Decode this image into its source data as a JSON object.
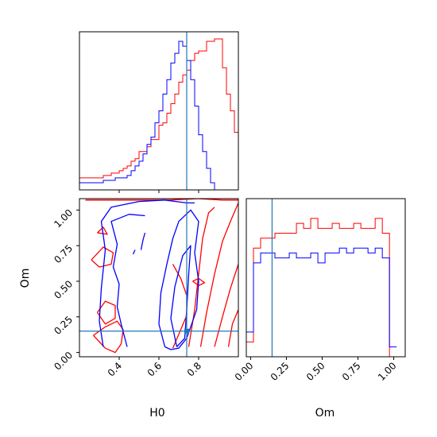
{
  "chart_data": {
    "type": "corner",
    "parameters": [
      "H0",
      "Om"
    ],
    "truth": {
      "H0": 0.74,
      "Om": 0.15
    },
    "colors": {
      "run_a": "#ff0000",
      "run_b": "#0000ff",
      "truth": "#1f77b4"
    },
    "axes": {
      "H0": {
        "label": "H0",
        "range": [
          0.2,
          1.0
        ],
        "ticks": [
          "0.4",
          "0.6",
          "0.8"
        ],
        "tick_values": [
          0.4,
          0.6,
          0.8
        ]
      },
      "Om": {
        "label": "Om",
        "range": [
          -0.03,
          1.08
        ],
        "ticks": [
          "0.00",
          "0.25",
          "0.50",
          "0.75",
          "1.00"
        ],
        "tick_values": [
          0.0,
          0.25,
          0.5,
          0.75,
          1.0
        ]
      }
    },
    "h0_hist_bins": [
      0.2,
      0.22,
      0.24,
      0.26,
      0.28,
      0.3,
      0.32,
      0.34,
      0.36,
      0.38,
      0.4,
      0.42,
      0.44,
      0.46,
      0.48,
      0.5,
      0.52,
      0.54,
      0.56,
      0.58,
      0.6,
      0.62,
      0.64,
      0.66,
      0.68,
      0.7,
      0.72,
      0.74,
      0.76,
      0.78,
      0.8,
      0.82,
      0.84,
      0.86,
      0.88,
      0.9,
      0.92,
      0.94,
      0.96,
      0.98,
      1.0
    ],
    "h0_hist": {
      "red": [
        0.5,
        0.5,
        0.5,
        0.5,
        0.5,
        0.5,
        0.6,
        0.6,
        0.7,
        0.7,
        0.8,
        0.9,
        1.0,
        1.2,
        1.3,
        1.6,
        1.6,
        1.8,
        2.1,
        2.1,
        2.7,
        2.8,
        3.2,
        3.6,
        4.0,
        4.5,
        4.8,
        5.0,
        5.4,
        5.7,
        5.8,
        5.8,
        6.2,
        6.2,
        6.3,
        6.3,
        5.1,
        4.0,
        3.3,
        2.4,
        0
      ],
      "blue": [
        0.3,
        0.3,
        0.3,
        0.3,
        0.3,
        0.3,
        0.4,
        0.4,
        0.4,
        0.5,
        0.5,
        0.5,
        0.6,
        0.8,
        1.0,
        1.2,
        1.5,
        1.9,
        2.2,
        2.8,
        3.3,
        4.0,
        4.6,
        5.3,
        5.7,
        6.2,
        6.0,
        5.4,
        4.6,
        3.5,
        2.3,
        1.6,
        0.9,
        0.3,
        0,
        0,
        0,
        0,
        0,
        0,
        0
      ]
    },
    "om_hist_bins": [
      -0.03,
      0.02,
      0.07,
      0.12,
      0.17,
      0.22,
      0.27,
      0.32,
      0.37,
      0.42,
      0.47,
      0.52,
      0.57,
      0.62,
      0.67,
      0.72,
      0.77,
      0.82,
      0.87,
      0.92,
      0.97,
      1.02
    ],
    "om_hist": {
      "red": [
        0.3,
        2.2,
        2.4,
        2.4,
        2.5,
        2.5,
        2.5,
        2.7,
        2.6,
        2.8,
        2.6,
        2.6,
        2.7,
        2.6,
        2.6,
        2.7,
        2.6,
        2.6,
        2.8,
        2.5,
        0,
        0
      ],
      "blue": [
        0.5,
        1.9,
        2.1,
        2.1,
        2.0,
        2.0,
        2.1,
        2.0,
        2.0,
        2.1,
        1.9,
        2.1,
        2.1,
        2.2,
        2.1,
        2.2,
        2.2,
        2.1,
        2.2,
        2.0,
        0.2,
        0.2
      ]
    },
    "contours_2d": {
      "red": [
        [
          [
            0.23,
            1.07
          ],
          [
            0.36,
            1.07
          ],
          [
            0.5,
            1.07
          ],
          [
            0.65,
            1.07
          ],
          [
            0.8,
            1.08
          ],
          [
            0.92,
            1.07
          ],
          [
            1.0,
            1.07
          ],
          [
            1.0,
            1.08
          ],
          [
            0.23,
            1.08
          ]
        ],
        [
          [
            0.27,
            0.12
          ],
          [
            0.33,
            0.18
          ],
          [
            0.39,
            0.22
          ],
          [
            0.42,
            0.16
          ],
          [
            0.41,
            0.06
          ],
          [
            0.38,
            0.0
          ],
          [
            0.33,
            0.03
          ],
          [
            0.27,
            0.12
          ]
        ],
        [
          [
            0.29,
            0.28
          ],
          [
            0.33,
            0.36
          ],
          [
            0.38,
            0.33
          ],
          [
            0.38,
            0.24
          ],
          [
            0.33,
            0.2
          ],
          [
            0.29,
            0.28
          ]
        ],
        [
          [
            0.26,
            0.65
          ],
          [
            0.32,
            0.74
          ],
          [
            0.37,
            0.7
          ],
          [
            0.36,
            0.62
          ],
          [
            0.3,
            0.6
          ],
          [
            0.26,
            0.65
          ]
        ],
        [
          [
            0.29,
            0.84
          ],
          [
            0.32,
            0.88
          ],
          [
            0.34,
            0.83
          ],
          [
            0.29,
            0.84
          ]
        ],
        [
          [
            0.67,
            0.62
          ],
          [
            0.71,
            0.52
          ],
          [
            0.74,
            0.4
          ],
          [
            0.74,
            0.26
          ],
          [
            0.71,
            0.16
          ],
          [
            0.67,
            0.03
          ]
        ],
        [
          [
            0.75,
            0.04
          ],
          [
            0.78,
            0.3
          ],
          [
            0.8,
            0.55
          ],
          [
            0.82,
            0.8
          ],
          [
            0.85,
            0.98
          ],
          [
            0.88,
            1.02
          ]
        ],
        [
          [
            0.81,
            0.04
          ],
          [
            0.84,
            0.28
          ],
          [
            0.88,
            0.55
          ],
          [
            0.92,
            0.78
          ],
          [
            0.96,
            0.92
          ],
          [
            1.0,
            1.05
          ]
        ],
        [
          [
            0.88,
            0.04
          ],
          [
            0.92,
            0.25
          ],
          [
            0.96,
            0.45
          ],
          [
            1.0,
            0.62
          ]
        ],
        [
          [
            0.95,
            0.04
          ],
          [
            0.97,
            0.2
          ],
          [
            1.0,
            0.3
          ]
        ],
        [
          [
            0.77,
            0.5
          ],
          [
            0.8,
            0.47
          ],
          [
            0.83,
            0.49
          ],
          [
            0.8,
            0.52
          ],
          [
            0.77,
            0.5
          ]
        ]
      ],
      "blue": [
        [
          [
            0.32,
            0.04
          ],
          [
            0.3,
            0.22
          ],
          [
            0.31,
            0.45
          ],
          [
            0.33,
            0.72
          ],
          [
            0.31,
            0.92
          ],
          [
            0.36,
            1.02
          ],
          [
            0.5,
            1.06
          ],
          [
            0.63,
            1.07
          ],
          [
            0.74,
            1.05
          ],
          [
            0.78,
            1.05
          ]
        ],
        [
          [
            0.44,
            0.04
          ],
          [
            0.41,
            0.2
          ],
          [
            0.39,
            0.32
          ],
          [
            0.4,
            0.48
          ],
          [
            0.37,
            0.6
          ],
          [
            0.39,
            0.76
          ],
          [
            0.36,
            0.92
          ],
          [
            0.45,
            0.97
          ],
          [
            0.53,
            0.96
          ]
        ],
        [
          [
            0.51,
            0.72
          ],
          [
            0.52,
            0.79
          ],
          [
            0.53,
            0.84
          ]
        ],
        [
          [
            0.47,
            0.69
          ],
          [
            0.48,
            0.72
          ]
        ],
        [
          [
            0.63,
            0.04
          ],
          [
            0.6,
            0.2
          ],
          [
            0.61,
            0.42
          ],
          [
            0.64,
            0.62
          ],
          [
            0.67,
            0.8
          ],
          [
            0.7,
            0.92
          ],
          [
            0.76,
            1.0
          ],
          [
            0.8,
            0.92
          ],
          [
            0.78,
            0.7
          ],
          [
            0.8,
            0.5
          ],
          [
            0.79,
            0.3
          ],
          [
            0.74,
            0.1
          ],
          [
            0.7,
            0.03
          ],
          [
            0.66,
            0.02
          ],
          [
            0.63,
            0.04
          ]
        ],
        [
          [
            0.69,
            0.04
          ],
          [
            0.66,
            0.24
          ],
          [
            0.68,
            0.46
          ],
          [
            0.72,
            0.68
          ],
          [
            0.76,
            0.75
          ],
          [
            0.75,
            0.55
          ],
          [
            0.74,
            0.3
          ],
          [
            0.73,
            0.1
          ],
          [
            0.69,
            0.04
          ]
        ]
      ]
    }
  }
}
